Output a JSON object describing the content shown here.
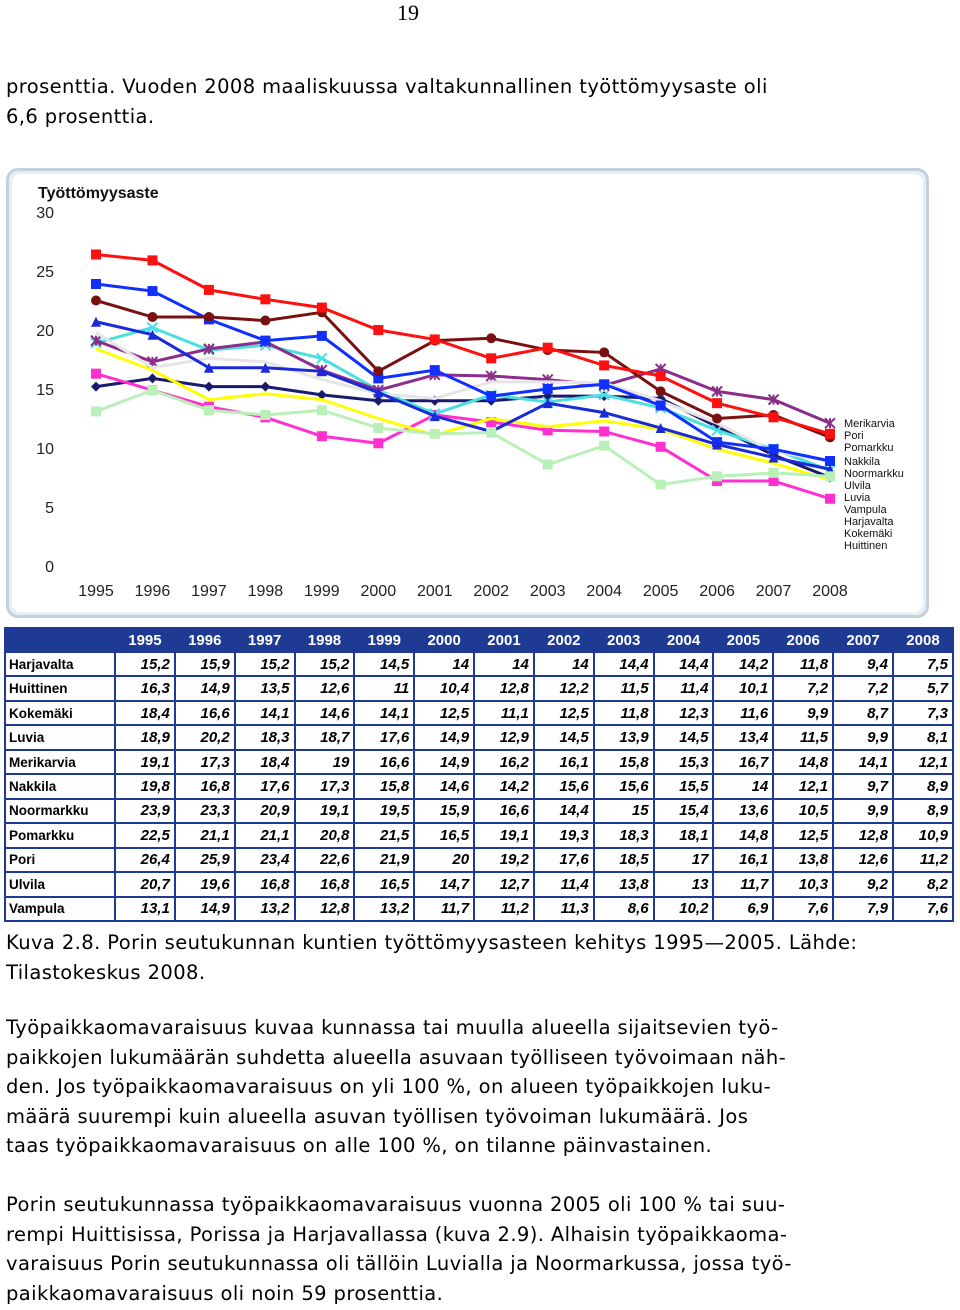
{
  "page_number": "19",
  "intro_lines": [
    "prosenttia. Vuoden 2008 maaliskuussa valtakunnallinen työttömyysaste oli",
    "6,6 prosenttia."
  ],
  "caption_lines": [
    "Kuva 2.8. Porin seutukunnan kuntien työttömyysasteen kehitys 1995—2005. Lähde:",
    "Tilastokeskus 2008."
  ],
  "paragraph1_lines": [
    "Työpaikkaomavaraisuus kuvaa kunnassa tai muulla alueella sijaitsevien työ-",
    "paikkojen lukumäärän suhdetta alueella asuvaan työlliseen työvoimaan näh-",
    "den. Jos työpaikkaomavaraisuus on yli 100 %, on alueen työpaikkojen luku-",
    "määrä suurempi kuin alueella asuvan työllisen työvoiman lukumäärä. Jos",
    "taas työpaikkaomavaraisuus on alle 100 %, on tilanne päinvastainen."
  ],
  "paragraph2_lines": [
    "Porin seutukunnassa työpaikkaomavaraisuus vuonna 2005 oli 100 % tai suu-",
    "rempi Huittisissa, Porissa ja Harjavallassa (kuva 2.9). Alhaisin työpaikkaoma-",
    "varaisuus Porin seutukunnassa oli tällöin Luvialla ja Noormarkussa, jossa työ-",
    "paikkaomavaraisuus oli noin 59 prosenttia."
  ],
  "chart_data": {
    "type": "line",
    "title": "Työttömyysaste",
    "x": [
      "1995",
      "1996",
      "1997",
      "1998",
      "1999",
      "2000",
      "2001",
      "2002",
      "2003",
      "2004",
      "2005",
      "2006",
      "2007",
      "2008"
    ],
    "ylim": [
      0,
      30
    ],
    "yticks": [
      0,
      5,
      10,
      15,
      20,
      25,
      30
    ],
    "grid": false,
    "series": [
      {
        "name": "Harjavalta",
        "color": "#1a1a6e",
        "marker": "diamond",
        "values": [
          15.2,
          15.9,
          15.2,
          15.2,
          14.5,
          14,
          14,
          14,
          14.4,
          14.4,
          14.2,
          11.8,
          9.4,
          7.5
        ]
      },
      {
        "name": "Huittinen",
        "color": "#ff2fd0",
        "marker": "square",
        "values": [
          16.3,
          14.9,
          13.5,
          12.6,
          11,
          10.4,
          12.8,
          12.2,
          11.5,
          11.4,
          10.1,
          7.2,
          7.2,
          5.7
        ]
      },
      {
        "name": "Kokemäki",
        "color": "#ffff00",
        "marker": "none",
        "values": [
          18.4,
          16.6,
          14.1,
          14.6,
          14.1,
          12.5,
          11.1,
          12.5,
          11.8,
          12.3,
          11.6,
          9.9,
          8.7,
          7.3
        ]
      },
      {
        "name": "Luvia",
        "color": "#4ae0e0",
        "marker": "cross",
        "values": [
          18.9,
          20.2,
          18.3,
          18.7,
          17.6,
          14.9,
          12.9,
          14.5,
          13.9,
          14.5,
          13.4,
          11.5,
          9.9,
          8.1
        ]
      },
      {
        "name": "Merikarvia",
        "color": "#8b2d8b",
        "marker": "star",
        "values": [
          19.1,
          17.3,
          18.4,
          19,
          16.6,
          14.9,
          16.2,
          16.1,
          15.8,
          15.3,
          16.7,
          14.8,
          14.1,
          12.1
        ]
      },
      {
        "name": "Nakkila",
        "color": "#e5e5e5",
        "marker": "none",
        "values": [
          19.8,
          16.8,
          17.6,
          17.3,
          15.8,
          14.6,
          14.2,
          15.6,
          15.6,
          15.5,
          14,
          12.1,
          9.7,
          8.9
        ]
      },
      {
        "name": "Noormarkku",
        "color": "#1030ff",
        "marker": "square",
        "values": [
          23.9,
          23.3,
          20.9,
          19.1,
          19.5,
          15.9,
          16.6,
          14.4,
          15,
          15.4,
          13.6,
          10.5,
          9.9,
          8.9
        ]
      },
      {
        "name": "Pomarkku",
        "color": "#7a1010",
        "marker": "circle",
        "values": [
          22.5,
          21.1,
          21.1,
          20.8,
          21.5,
          16.5,
          19.1,
          19.3,
          18.3,
          18.1,
          14.8,
          12.5,
          12.8,
          10.9
        ]
      },
      {
        "name": "Pori",
        "color": "#ff1010",
        "marker": "square",
        "values": [
          26.4,
          25.9,
          23.4,
          22.6,
          21.9,
          20,
          19.2,
          17.6,
          18.5,
          17,
          16.1,
          13.8,
          12.6,
          11.2
        ]
      },
      {
        "name": "Ulvila",
        "color": "#1a2ad8",
        "marker": "triangle",
        "values": [
          20.7,
          19.6,
          16.8,
          16.8,
          16.5,
          14.7,
          12.7,
          11.4,
          13.8,
          13,
          11.7,
          10.3,
          9.2,
          8.2
        ]
      },
      {
        "name": "Vampula",
        "color": "#b8f0b8",
        "marker": "square",
        "values": [
          13.1,
          14.9,
          13.2,
          12.8,
          13.2,
          11.7,
          11.2,
          11.3,
          8.6,
          10.2,
          6.9,
          7.6,
          7.9,
          7.6
        ]
      }
    ]
  },
  "table": {
    "header": [
      "",
      "1995",
      "1996",
      "1997",
      "1998",
      "1999",
      "2000",
      "2001",
      "2002",
      "2003",
      "2004",
      "2005",
      "2006",
      "2007",
      "2008"
    ],
    "rows": [
      [
        "Harjavalta",
        "15,2",
        "15,9",
        "15,2",
        "15,2",
        "14,5",
        "14",
        "14",
        "14",
        "14,4",
        "14,4",
        "14,2",
        "11,8",
        "9,4",
        "7,5"
      ],
      [
        "Huittinen",
        "16,3",
        "14,9",
        "13,5",
        "12,6",
        "11",
        "10,4",
        "12,8",
        "12,2",
        "11,5",
        "11,4",
        "10,1",
        "7,2",
        "7,2",
        "5,7"
      ],
      [
        "Kokemäki",
        "18,4",
        "16,6",
        "14,1",
        "14,6",
        "14,1",
        "12,5",
        "11,1",
        "12,5",
        "11,8",
        "12,3",
        "11,6",
        "9,9",
        "8,7",
        "7,3"
      ],
      [
        "Luvia",
        "18,9",
        "20,2",
        "18,3",
        "18,7",
        "17,6",
        "14,9",
        "12,9",
        "14,5",
        "13,9",
        "14,5",
        "13,4",
        "11,5",
        "9,9",
        "8,1"
      ],
      [
        "Merikarvia",
        "19,1",
        "17,3",
        "18,4",
        "19",
        "16,6",
        "14,9",
        "16,2",
        "16,1",
        "15,8",
        "15,3",
        "16,7",
        "14,8",
        "14,1",
        "12,1"
      ],
      [
        "Nakkila",
        "19,8",
        "16,8",
        "17,6",
        "17,3",
        "15,8",
        "14,6",
        "14,2",
        "15,6",
        "15,6",
        "15,5",
        "14",
        "12,1",
        "9,7",
        "8,9"
      ],
      [
        "Noormarkku",
        "23,9",
        "23,3",
        "20,9",
        "19,1",
        "19,5",
        "15,9",
        "16,6",
        "14,4",
        "15",
        "15,4",
        "13,6",
        "10,5",
        "9,9",
        "8,9"
      ],
      [
        "Pomarkku",
        "22,5",
        "21,1",
        "21,1",
        "20,8",
        "21,5",
        "16,5",
        "19,1",
        "19,3",
        "18,3",
        "18,1",
        "14,8",
        "12,5",
        "12,8",
        "10,9"
      ],
      [
        "Pori",
        "26,4",
        "25,9",
        "23,4",
        "22,6",
        "21,9",
        "20",
        "19,2",
        "17,6",
        "18,5",
        "17",
        "16,1",
        "13,8",
        "12,6",
        "11,2"
      ],
      [
        "Ulvila",
        "20,7",
        "19,6",
        "16,8",
        "16,8",
        "16,5",
        "14,7",
        "12,7",
        "11,4",
        "13,8",
        "13",
        "11,7",
        "10,3",
        "9,2",
        "8,2"
      ],
      [
        "Vampula",
        "13,1",
        "14,9",
        "13,2",
        "12,8",
        "13,2",
        "11,7",
        "11,2",
        "11,3",
        "8,6",
        "10,2",
        "6,9",
        "7,6",
        "7,9",
        "7,6"
      ]
    ]
  }
}
